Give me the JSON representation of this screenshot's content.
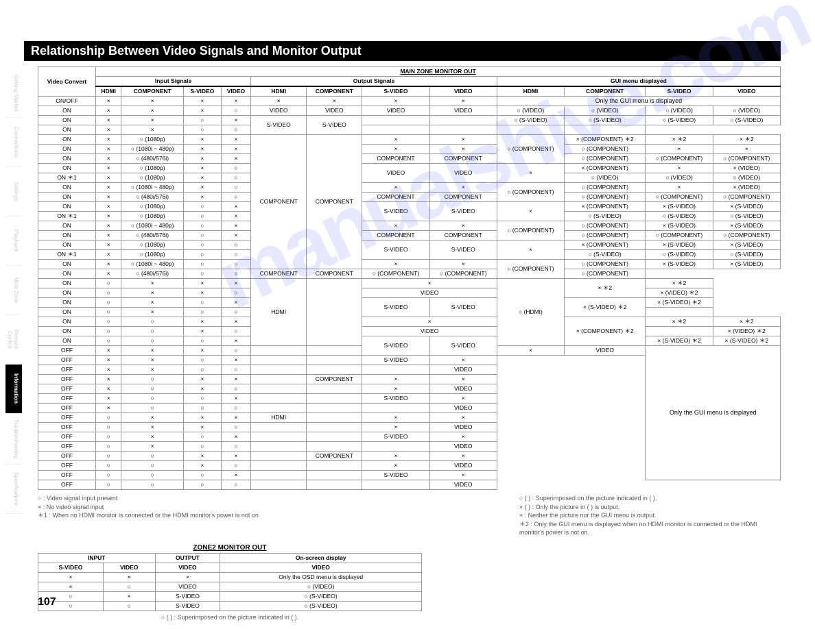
{
  "title": "Relationship Between Video Signals and Monitor Output",
  "page_number": "107",
  "watermark": "manualshive.com",
  "sidebar": {
    "items": [
      {
        "label": "Getting Started"
      },
      {
        "label": "Connections"
      },
      {
        "label": "Settings"
      },
      {
        "label": "Playback"
      },
      {
        "label": "Multi Zone"
      },
      {
        "label": "Remote Control"
      },
      {
        "label": "Information",
        "active": true
      },
      {
        "label": "Troubleshooting"
      },
      {
        "label": "Specifications"
      }
    ]
  },
  "main_table": {
    "top_header": "MAIN ZONE MONITOR OUT",
    "group_headers": [
      "Input Signals",
      "Output Signals",
      "GUI menu displayed"
    ],
    "columns": [
      "Video Convert",
      "HDMI",
      "COMPONENT",
      "S-VIDEO",
      "VIDEO",
      "HDMI",
      "COMPONENT",
      "S-VIDEO",
      "VIDEO",
      "HDMI",
      "COMPONENT",
      "S-VIDEO",
      "VIDEO"
    ],
    "gui_only_text": "Only the GUI menu is displayed",
    "rows": [
      {
        "vc": "ON/OFF",
        "in": [
          "×",
          "×",
          "×",
          "×"
        ],
        "out": [
          "×",
          "×",
          "×",
          "×"
        ],
        "gui": [
          "MERGE_GUI_ONLY"
        ]
      },
      {
        "vc": "ON",
        "in": [
          "×",
          "×",
          "×",
          "○"
        ],
        "out": [
          "VIDEO",
          "VIDEO",
          "VIDEO",
          "VIDEO"
        ],
        "gui": [
          "○ (VIDEO)",
          "○ (VIDEO)",
          "○ (VIDEO)",
          "○ (VIDEO)"
        ]
      },
      {
        "vc": "ON",
        "in": [
          "×",
          "×",
          "○",
          "×"
        ],
        "outmerge": {
          "start": true,
          "span": 2,
          "vals": [
            "S-VIDEO",
            "S-VIDEO",
            "S-VIDEO",
            "S-VIDEO"
          ]
        },
        "gui": [
          "○ (S-VIDEO)",
          "○ (S-VIDEO)",
          "○ (S-VIDEO)",
          "○ (S-VIDEO)"
        ]
      },
      {
        "vc": "ON",
        "in": [
          "×",
          "×",
          "○",
          "○"
        ],
        "gui": [
          "",
          "",
          "",
          ""
        ]
      },
      {
        "vc": "ON",
        "in": [
          "×",
          "○ (1080p)",
          "×",
          "×"
        ],
        "outmerge": {
          "start": true,
          "span": 14,
          "vals": [
            "COMPONENT",
            "COMPONENT",
            "",
            ""
          ]
        },
        "out_tail": [
          "×",
          "×"
        ],
        "guimerge": {
          "start": true,
          "span": 3,
          "vals": [
            "○ (COMPONENT)"
          ]
        },
        "gui_tail": [
          "× (COMPONENT) ＊2",
          "× ＊2",
          "× ＊2"
        ]
      },
      {
        "vc": "ON",
        "in": [
          "×",
          "○ (1080i ~ 480p)",
          "×",
          "×"
        ],
        "out_tail": [
          "×",
          "×"
        ],
        "gui_tail": [
          "○ (COMPONENT)",
          "×",
          "×"
        ]
      },
      {
        "vc": "ON",
        "in": [
          "×",
          "○ (480i/576i)",
          "×",
          "×"
        ],
        "out_tail": [
          "COMPONENT",
          "COMPONENT"
        ],
        "gui_tail": [
          "○ (COMPONENT)",
          "○ (COMPONENT)",
          "○ (COMPONENT)"
        ]
      },
      {
        "vc": "ON",
        "in": [
          "×",
          "○ (1080p)",
          "×",
          "○"
        ],
        "out_tail_merge": {
          "span": 2,
          "vals": [
            "VIDEO",
            "VIDEO"
          ]
        },
        "guimerge": {
          "start": true,
          "span": 2,
          "vals": [
            "×"
          ]
        },
        "gui_tail": [
          "× (COMPONENT)",
          "×",
          "× (VIDEO)"
        ]
      },
      {
        "vc": "ON ＊1",
        "in": [
          "×",
          "○ (1080p)",
          "×",
          "○"
        ],
        "gui_tail": [
          "○ (VIDEO)",
          "○ (VIDEO)",
          "○ (VIDEO)"
        ]
      },
      {
        "vc": "ON",
        "in": [
          "×",
          "○ (1080i ~ 480p)",
          "×",
          "○"
        ],
        "out_tail": [
          "×",
          "×"
        ],
        "guimerge": {
          "start": true,
          "span": 2,
          "vals": [
            "○ (COMPONENT)"
          ]
        },
        "gui_tail": [
          "○ (COMPONENT)",
          "×",
          "× (VIDEO)"
        ]
      },
      {
        "vc": "ON",
        "in": [
          "×",
          "○ (480i/576i)",
          "×",
          "○"
        ],
        "out_tail": [
          "COMPONENT",
          "COMPONENT"
        ],
        "gui_tail": [
          "○ (COMPONENT)",
          "○ (COMPONENT)",
          "○ (COMPONENT)"
        ]
      },
      {
        "vc": "ON",
        "in": [
          "×",
          "○ (1080p)",
          "○",
          "×"
        ],
        "out_tail_merge": {
          "span": 2,
          "vals": [
            "S-VIDEO",
            "S-VIDEO"
          ]
        },
        "guimerge": {
          "start": true,
          "span": 2,
          "vals": [
            "×"
          ]
        },
        "gui_tail": [
          "× (COMPONENT)",
          "× (S-VIDEO)",
          "× (S-VIDEO)"
        ]
      },
      {
        "vc": "ON ＊1",
        "in": [
          "×",
          "○ (1080p)",
          "○",
          "×"
        ],
        "gui_tail": [
          "○ (S-VIDEO)",
          "○ (S-VIDEO)",
          "○ (S-VIDEO)"
        ]
      },
      {
        "vc": "ON",
        "in": [
          "×",
          "○ (1080i ~ 480p)",
          "○",
          "×"
        ],
        "out_tail": [
          "×",
          "×"
        ],
        "guimerge": {
          "start": true,
          "span": 2,
          "vals": [
            "○ (COMPONENT)"
          ]
        },
        "gui_tail": [
          "○ (COMPONENT)",
          "× (S-VIDEO)",
          "× (S-VIDEO)"
        ]
      },
      {
        "vc": "ON",
        "in": [
          "×",
          "○ (480i/576i)",
          "○",
          "×"
        ],
        "out_tail": [
          "COMPONENT",
          "COMPONENT"
        ],
        "gui_tail": [
          "○ (COMPONENT)",
          "○ (COMPONENT)",
          "○ (COMPONENT)"
        ]
      },
      {
        "vc": "ON",
        "in": [
          "×",
          "○ (1080p)",
          "○",
          "○"
        ],
        "out_tail_merge": {
          "span": 2,
          "vals": [
            "S-VIDEO",
            "S-VIDEO"
          ]
        },
        "guimerge": {
          "start": true,
          "span": 2,
          "vals": [
            "×"
          ]
        },
        "gui_tail": [
          "× (COMPONENT)",
          "× (S-VIDEO)",
          "× (S-VIDEO)"
        ]
      },
      {
        "vc": "ON ＊1",
        "in": [
          "×",
          "○ (1080p)",
          "○",
          "○"
        ],
        "gui_tail": [
          "○ (S-VIDEO)",
          "○ (S-VIDEO)",
          "○ (S-VIDEO)"
        ]
      },
      {
        "vc": "ON",
        "in": [
          "×",
          "○ (1080i ~ 480p)",
          "○",
          "○"
        ],
        "out_tail": [
          "×",
          "×"
        ],
        "guimerge": {
          "start": true,
          "span": 2,
          "vals": [
            "○ (COMPONENT)"
          ]
        },
        "gui_tail": [
          "○ (COMPONENT)",
          "× (S-VIDEO)",
          "× (S-VIDEO)"
        ]
      },
      {
        "vc": "ON",
        "in": [
          "×",
          "○ (480i/576i)",
          "○",
          "○"
        ],
        "out_tail": [
          "COMPONENT",
          "COMPONENT"
        ],
        "gui_tail": [
          "○ (COMPONENT)",
          "○ (COMPONENT)",
          "○ (COMPONENT)"
        ]
      },
      {
        "vc": "ON",
        "in": [
          "○",
          "×",
          "×",
          "×"
        ],
        "outmerge": {
          "start": true,
          "span": 7,
          "vals": [
            "HDMI",
            "",
            ""
          ]
        },
        "out_tail_single": "×",
        "guimerge": {
          "start": true,
          "span": 7,
          "vals": [
            "○ (HDMI)"
          ]
        },
        "gui_tail_merge": {
          "span": 2,
          "vals": [
            "× ＊2"
          ]
        },
        "gui_last": "× ＊2"
      },
      {
        "vc": "ON",
        "in": [
          "○",
          "×",
          "×",
          "○"
        ],
        "out_tail_single": "VIDEO",
        "gui_last": "× (VIDEO) ＊2"
      },
      {
        "vc": "ON",
        "in": [
          "○",
          "×",
          "○",
          "×"
        ],
        "out_tail_merge2": {
          "span": 2,
          "vals": [
            "S-VIDEO",
            "S-VIDEO"
          ]
        },
        "gui_tail_merge": {
          "span": 2,
          "vals": [
            "× (S-VIDEO) ＊2"
          ]
        },
        "gui_last": "× (S-VIDEO) ＊2"
      },
      {
        "vc": "ON",
        "in": [
          "○",
          "×",
          "○",
          "○"
        ],
        "gui_last": ""
      },
      {
        "vc": "ON",
        "in": [
          "○",
          "○",
          "×",
          "×"
        ],
        "out_mid_merge": {
          "span": 3,
          "vals": [
            "COMPONENT"
          ]
        },
        "out_tail_single": "×",
        "gui_tail_merge": {
          "span": 3,
          "vals": [
            "× (COMPONENT) ＊2"
          ]
        },
        "gui_mid": "× ＊2",
        "gui_last": "× ＊2"
      },
      {
        "vc": "ON",
        "in": [
          "○",
          "○",
          "×",
          "○"
        ],
        "out_tail_single": "VIDEO",
        "gui_mid": "",
        "gui_last": "× (VIDEO) ＊2"
      },
      {
        "vc": "ON",
        "in": [
          "○",
          "○",
          "○",
          "×"
        ],
        "out_tail_merge2": {
          "span": 2,
          "vals": [
            "S-VIDEO",
            "S-VIDEO"
          ]
        },
        "gui_mid": "× (S-VIDEO) ＊2",
        "gui_last": "× (S-VIDEO) ＊2"
      },
      {
        "vc": "OFF",
        "in": [
          "×",
          "×",
          "×",
          "○"
        ],
        "out": [
          "",
          "",
          "×",
          "VIDEO"
        ],
        "guimerge_big": {
          "start": true,
          "span": 14
        },
        "hdmi_merge": {
          "start": true,
          "span": 7,
          "val": "×"
        }
      },
      {
        "vc": "OFF",
        "in": [
          "×",
          "×",
          "○",
          "×"
        ],
        "out": [
          "",
          "",
          "S-VIDEO",
          "×"
        ],
        "svid_merge": {
          "span": 2
        }
      },
      {
        "vc": "OFF",
        "in": [
          "×",
          "×",
          "○",
          "○"
        ],
        "out": [
          "",
          "",
          "",
          "VIDEO"
        ]
      },
      {
        "vc": "OFF",
        "in": [
          "×",
          "○",
          "×",
          "×"
        ],
        "out": [
          "",
          "COMPONENT",
          "×",
          "×"
        ],
        "comp_merge": {
          "span": 4
        }
      },
      {
        "vc": "OFF",
        "in": [
          "×",
          "○",
          "×",
          "○"
        ],
        "out": [
          "",
          "",
          "×",
          "VIDEO"
        ]
      },
      {
        "vc": "OFF",
        "in": [
          "×",
          "○",
          "○",
          "×"
        ],
        "out": [
          "",
          "",
          "S-VIDEO",
          "×"
        ],
        "svid_merge": {
          "span": 2
        }
      },
      {
        "vc": "OFF",
        "in": [
          "×",
          "○",
          "○",
          "○"
        ],
        "out": [
          "",
          "",
          "",
          "VIDEO"
        ]
      },
      {
        "vc": "OFF",
        "in": [
          "○",
          "×",
          "×",
          "×"
        ],
        "out": [
          "HDMI",
          "",
          "×",
          "×"
        ],
        "hdmi2_merge": {
          "start": true,
          "span": 7
        }
      },
      {
        "vc": "OFF",
        "in": [
          "○",
          "×",
          "×",
          "○"
        ],
        "out": [
          "",
          "",
          "×",
          "VIDEO"
        ]
      },
      {
        "vc": "OFF",
        "in": [
          "○",
          "×",
          "○",
          "×"
        ],
        "out": [
          "",
          "",
          "S-VIDEO",
          "×"
        ],
        "svid_merge": {
          "span": 2
        }
      },
      {
        "vc": "OFF",
        "in": [
          "○",
          "×",
          "○",
          "○"
        ],
        "out": [
          "",
          "",
          "",
          "VIDEO"
        ]
      },
      {
        "vc": "OFF",
        "in": [
          "○",
          "○",
          "×",
          "×"
        ],
        "out": [
          "",
          "COMPONENT",
          "×",
          "×"
        ],
        "comp_merge": {
          "span": 4
        }
      },
      {
        "vc": "OFF",
        "in": [
          "○",
          "○",
          "×",
          "○"
        ],
        "out": [
          "",
          "",
          "×",
          "VIDEO"
        ]
      },
      {
        "vc": "OFF",
        "in": [
          "○",
          "○",
          "○",
          "×"
        ],
        "out": [
          "",
          "",
          "S-VIDEO",
          "×"
        ],
        "svid_merge": {
          "span": 2
        }
      },
      {
        "vc": "OFF",
        "in": [
          "○",
          "○",
          "○",
          "○"
        ],
        "out": [
          "",
          "",
          "",
          "VIDEO"
        ]
      }
    ]
  },
  "legend_left": [
    "○ : Video signal input present",
    "× : No video signal input",
    "＊1 : When no HDMI monitor is connected or the HDMI monitor's power is not on"
  ],
  "legend_right": [
    "○ ( ) : Superimposed on the picture indicated in ( ).",
    "× ( ) : Only the picture in ( ) is output.",
    "× : Neither the picture nor the GUI menu is output.",
    "＊2 : Only the GUI menu is displayed when no HDMI monitor is connected or the HDMI",
    "       monitor's power is not on."
  ],
  "zone2": {
    "title": "ZONE2 MONITOR OUT",
    "headers": [
      "INPUT",
      "",
      "OUTPUT",
      "On-screen display"
    ],
    "subheaders": [
      "S-VIDEO",
      "VIDEO",
      "VIDEO",
      "VIDEO"
    ],
    "rows": [
      [
        "×",
        "×",
        "×",
        "Only the OSD menu is displayed"
      ],
      [
        "×",
        "○",
        "VIDEO",
        "○ (VIDEO)"
      ],
      [
        "○",
        "×",
        "S-VIDEO",
        "○ (S-VIDEO)"
      ],
      [
        "○",
        "○",
        "S-VIDEO",
        "○ (S-VIDEO)"
      ]
    ],
    "note": "○ ( ) : Superimposed on the picture indicated in ( )."
  }
}
